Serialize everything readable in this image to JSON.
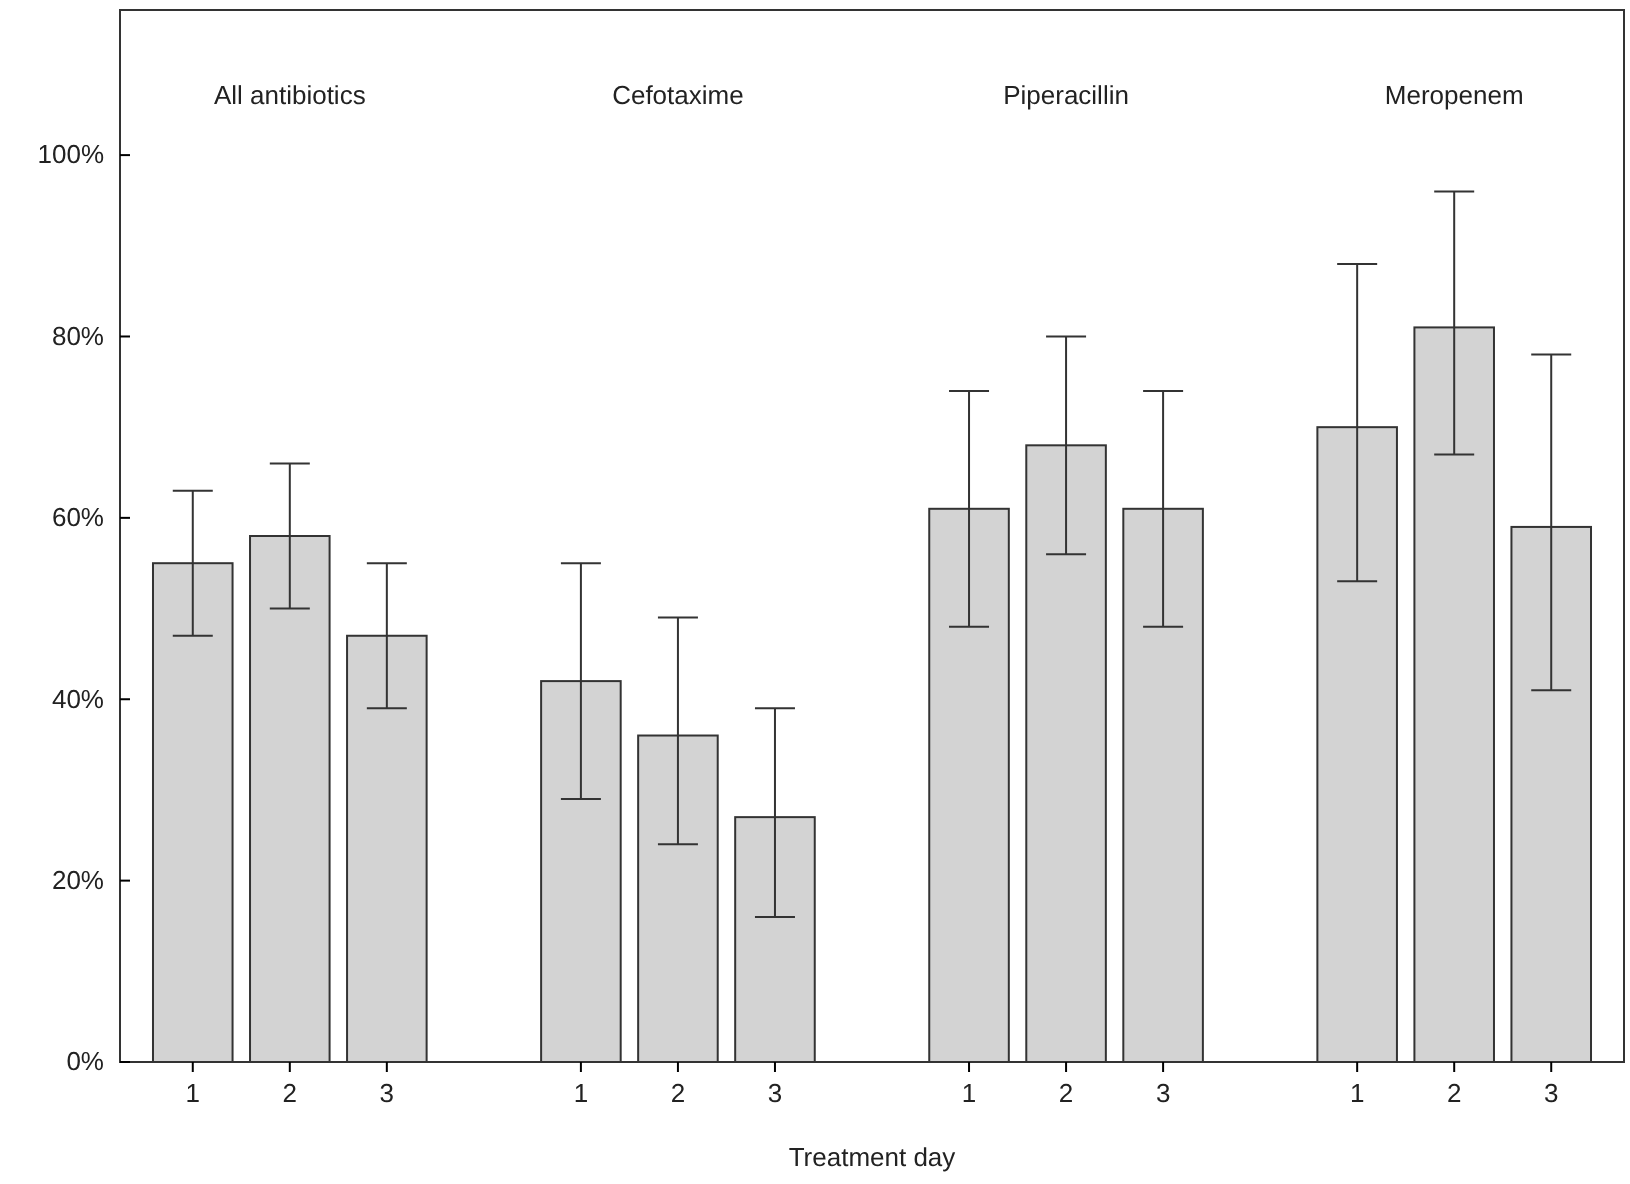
{
  "chart_data": {
    "type": "bar",
    "xlabel": "Treatment day",
    "categories": [
      "1",
      "2",
      "3",
      null,
      "1",
      "2",
      "3",
      null,
      "1",
      "2",
      "3",
      null,
      "1",
      "2",
      "3"
    ],
    "values": [
      55,
      58,
      47,
      null,
      42,
      36,
      27,
      null,
      61,
      68,
      61,
      null,
      70,
      81,
      59
    ],
    "errors": [
      [
        47,
        63
      ],
      [
        50,
        66
      ],
      [
        39,
        55
      ],
      null,
      [
        29,
        55
      ],
      [
        24,
        49
      ],
      [
        16,
        39
      ],
      null,
      [
        48,
        74
      ],
      [
        56,
        80
      ],
      [
        48,
        74
      ],
      null,
      [
        53,
        88
      ],
      [
        67,
        96
      ],
      [
        41,
        78
      ]
    ],
    "color": "#d3d3d3",
    "ylim": [
      0,
      116
    ],
    "yticks": [
      {
        "value": 0,
        "label": "0%"
      },
      {
        "value": 20,
        "label": "20%"
      },
      {
        "value": 40,
        "label": "40%"
      },
      {
        "value": 60,
        "label": "60%"
      },
      {
        "value": 80,
        "label": "80%"
      },
      {
        "value": 100,
        "label": "100%"
      }
    ],
    "grid": false,
    "annotations": [
      "All antibiotics",
      "Cefotaxime",
      "Piperacillin",
      "Meropenem"
    ]
  }
}
